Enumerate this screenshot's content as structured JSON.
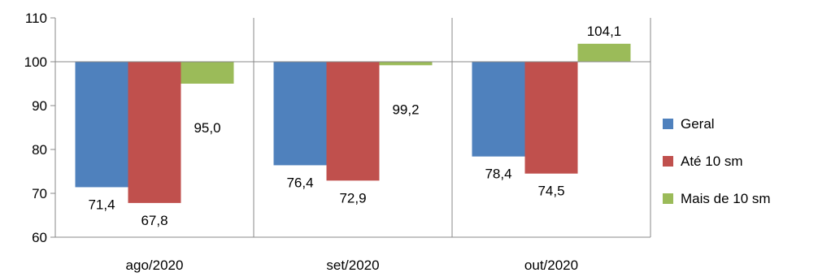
{
  "chart_data": {
    "type": "bar",
    "baseline": 100,
    "categories": [
      "ago/2020",
      "set/2020",
      "out/2020"
    ],
    "series": [
      {
        "name": "Geral",
        "color": "#4F81BD",
        "values": [
          71.4,
          76.4,
          78.4
        ],
        "labels": [
          "71,4",
          "76,4",
          "78,4"
        ]
      },
      {
        "name": "Até 10 sm",
        "color": "#C0504D",
        "values": [
          67.8,
          72.9,
          74.5
        ],
        "labels": [
          "67,8",
          "72,9",
          "74,5"
        ]
      },
      {
        "name": "Mais de 10 sm",
        "color": "#9BBB59",
        "values": [
          95.0,
          99.2,
          104.1
        ],
        "labels": [
          "95,0",
          "99,2",
          "104,1"
        ]
      }
    ],
    "yticks": [
      60,
      70,
      80,
      90,
      100,
      110
    ],
    "ylim": [
      60,
      110
    ],
    "grid": "vertical separators between categories",
    "legend": "right"
  }
}
